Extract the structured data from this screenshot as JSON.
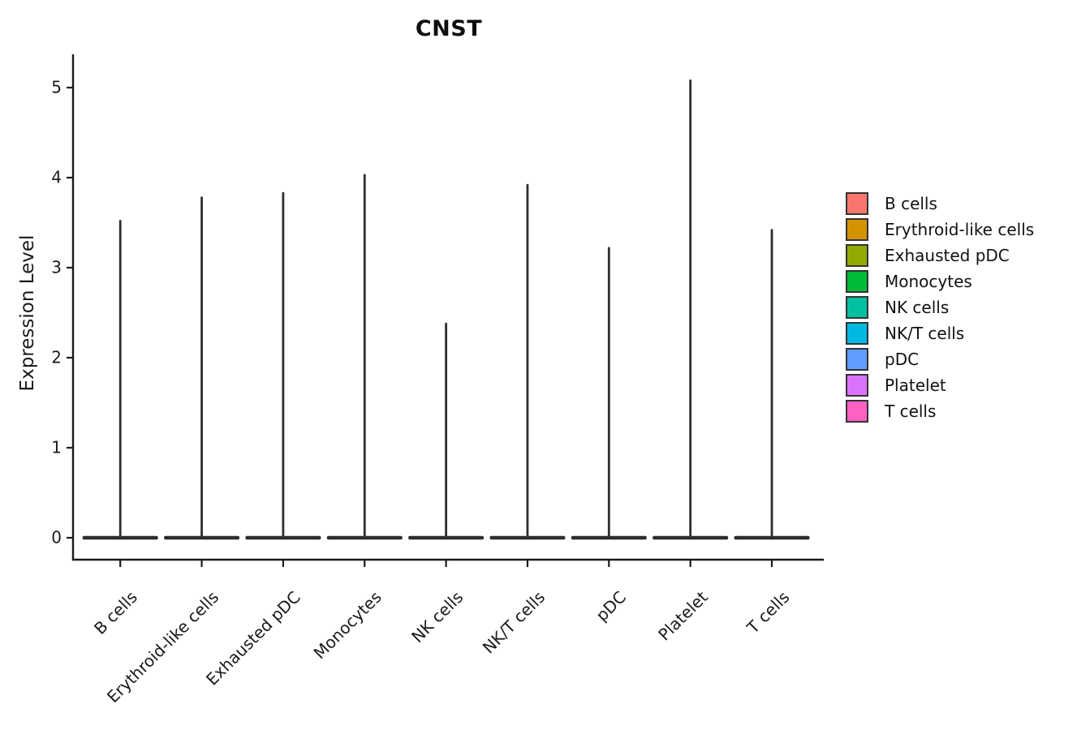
{
  "chart_data": {
    "type": "violin",
    "title": "CNST",
    "xlabel": "",
    "ylabel": "Expression Level",
    "categories": [
      "B cells",
      "Erythroid-like cells",
      "Exhausted pDC",
      "Monocytes",
      "NK cells",
      "NK/T cells",
      "pDC",
      "Platelet",
      "T cells"
    ],
    "max_expression": [
      3.53,
      3.79,
      3.84,
      4.04,
      2.39,
      3.93,
      3.23,
      5.09,
      3.43
    ],
    "baseline_value": 0,
    "y_ticks": [
      0,
      1,
      2,
      3,
      4,
      5
    ],
    "ylim": [
      -0.25,
      5.35
    ],
    "grid": false,
    "legend_position": "right",
    "legend": [
      {
        "label": "B cells",
        "color": "#F8766D"
      },
      {
        "label": "Erythroid-like cells",
        "color": "#D39200"
      },
      {
        "label": "Exhausted pDC",
        "color": "#93AA00"
      },
      {
        "label": "Monocytes",
        "color": "#00BA38"
      },
      {
        "label": "NK cells",
        "color": "#00C19F"
      },
      {
        "label": "NK/T cells",
        "color": "#00B9E3"
      },
      {
        "label": "pDC",
        "color": "#619CFF"
      },
      {
        "label": "Platelet",
        "color": "#DB72FB"
      },
      {
        "label": "T cells",
        "color": "#FF61C3"
      }
    ],
    "colors": {
      "axis": "#1a1a1a",
      "violin_outline": "#2e2e2e",
      "background": "#ffffff",
      "title_text": "#0d0d0d",
      "legend_swatch_border": "#333333"
    }
  }
}
